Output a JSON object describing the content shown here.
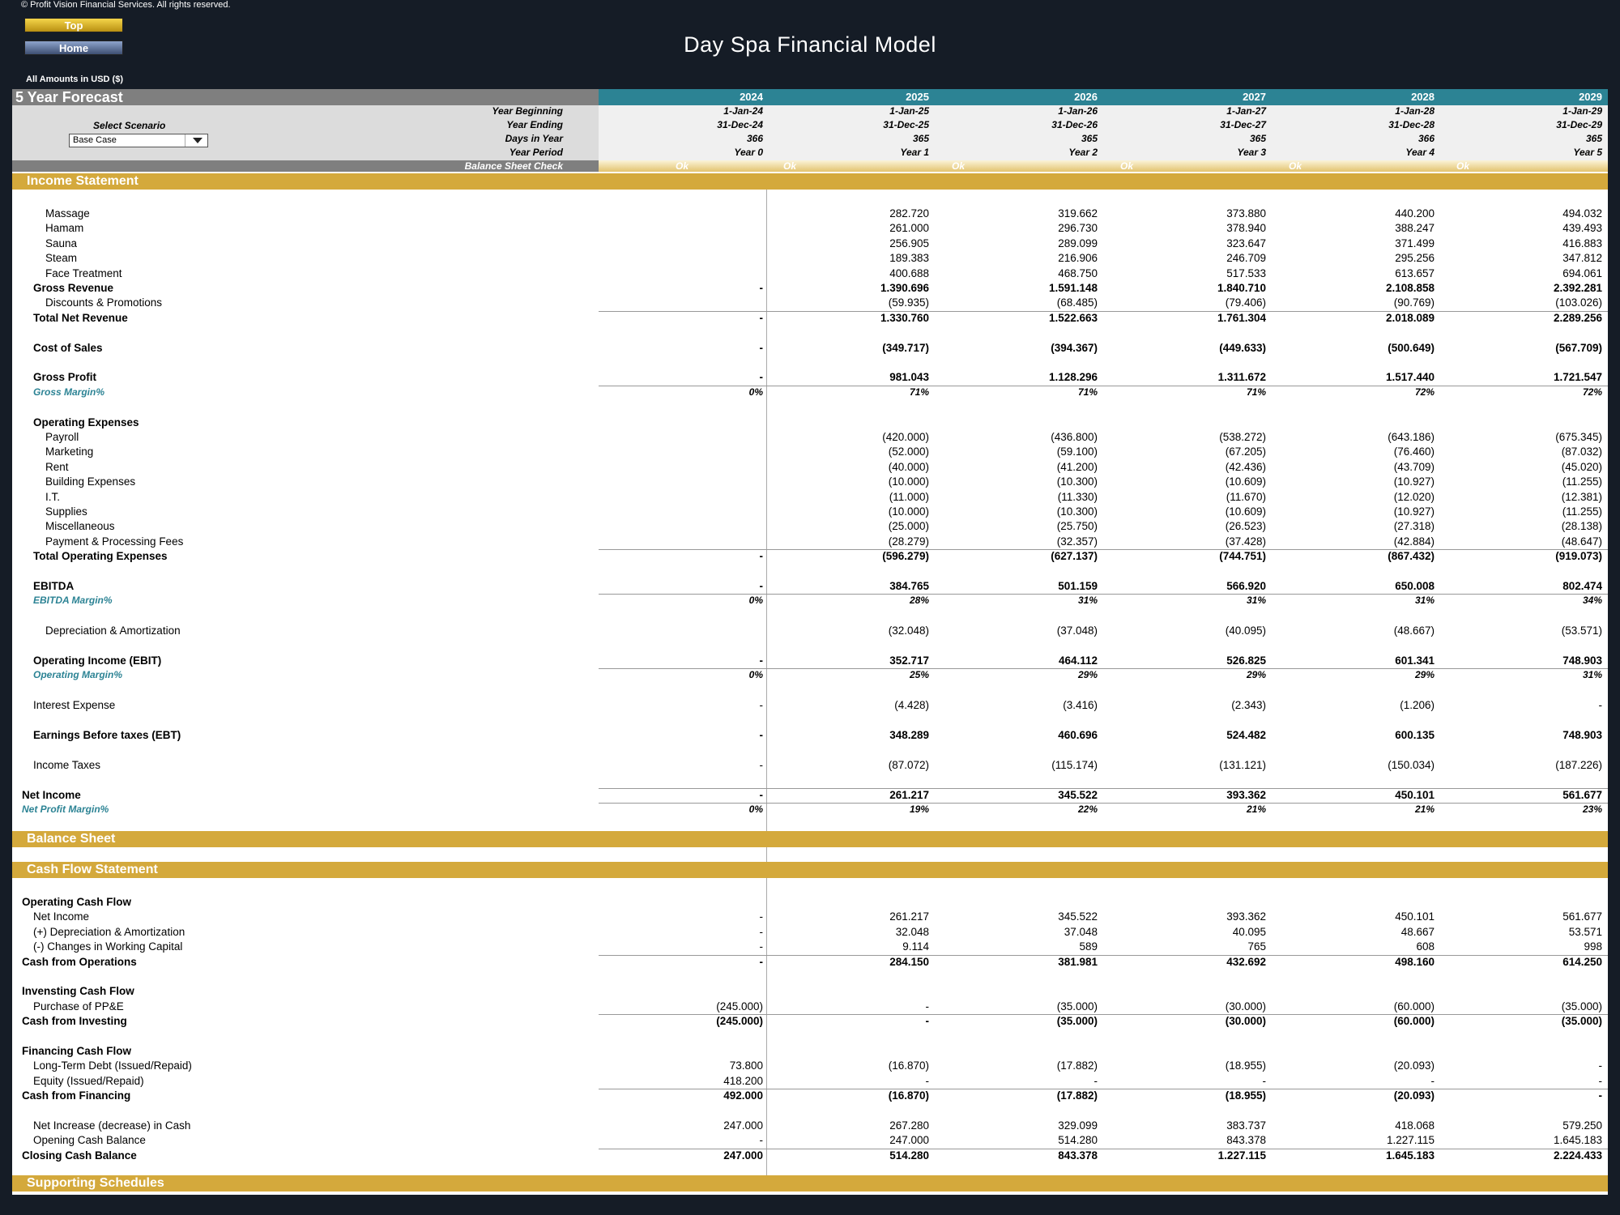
{
  "header": {
    "copyright": "© Profit Vision Financial Services. All rights reserved.",
    "top_button": "Top",
    "home_button": "Home",
    "title": "Day Spa Financial Model",
    "amounts": "All Amounts in  USD ($)"
  },
  "forecast": {
    "label": "5 Year Forecast",
    "years": [
      "2024",
      "2025",
      "2026",
      "2027",
      "2028",
      "2029"
    ],
    "year_beginning_label": "Year Beginning",
    "year_beginning": [
      "1-Jan-24",
      "1-Jan-25",
      "1-Jan-26",
      "1-Jan-27",
      "1-Jan-28",
      "1-Jan-29"
    ],
    "year_ending_label": "Year Ending",
    "year_ending": [
      "31-Dec-24",
      "31-Dec-25",
      "31-Dec-26",
      "31-Dec-27",
      "31-Dec-28",
      "31-Dec-29"
    ],
    "days_label": "Days in Year",
    "days": [
      "366",
      "365",
      "365",
      "365",
      "366",
      "365"
    ],
    "period_label": "Year Period",
    "period": [
      "Year 0",
      "Year 1",
      "Year 2",
      "Year 3",
      "Year 4",
      "Year 5"
    ],
    "scenario_label": "Select Scenario",
    "scenario_value": "Base Case",
    "bs_check_label": "Balance Sheet Check",
    "bs_check": [
      "Ok",
      "Ok",
      "Ok",
      "Ok",
      "Ok",
      "Ok"
    ]
  },
  "sections": {
    "income": "Income Statement",
    "balance": "Balance Sheet",
    "cashflow": "Cash Flow Statement",
    "supporting": "Supporting Schedules"
  },
  "income_rows": [
    {
      "label": "Massage",
      "indent": 2,
      "vals": [
        "",
        "282.720",
        "319.662",
        "373.880",
        "440.200",
        "494.032"
      ]
    },
    {
      "label": "Hamam",
      "indent": 2,
      "vals": [
        "",
        "261.000",
        "296.730",
        "378.940",
        "388.247",
        "439.493"
      ]
    },
    {
      "label": "Sauna",
      "indent": 2,
      "vals": [
        "",
        "256.905",
        "289.099",
        "323.647",
        "371.499",
        "416.883"
      ]
    },
    {
      "label": "Steam",
      "indent": 2,
      "vals": [
        "",
        "189.383",
        "216.906",
        "246.709",
        "295.256",
        "347.812"
      ]
    },
    {
      "label": "Face Treatment",
      "indent": 2,
      "vals": [
        "",
        "400.688",
        "468.750",
        "517.533",
        "613.657",
        "694.061"
      ]
    },
    {
      "label": "Gross Revenue",
      "indent": 1,
      "bold": true,
      "vals": [
        "-",
        "1.390.696",
        "1.591.148",
        "1.840.710",
        "2.108.858",
        "2.392.281"
      ]
    },
    {
      "label": "Discounts & Promotions",
      "indent": 2,
      "vals": [
        "",
        "(59.935)",
        "(68.485)",
        "(79.406)",
        "(90.769)",
        "(103.026)"
      ]
    },
    {
      "label": "Total Net Revenue",
      "indent": 1,
      "bold": true,
      "line": true,
      "vals": [
        "-",
        "1.330.760",
        "1.522.663",
        "1.761.304",
        "2.018.089",
        "2.289.256"
      ]
    },
    {
      "label": "Cost of Sales",
      "indent": 1,
      "bold": true,
      "gap": true,
      "vals": [
        "-",
        "(349.717)",
        "(394.367)",
        "(449.633)",
        "(500.649)",
        "(567.709)"
      ]
    },
    {
      "label": "Gross Profit",
      "indent": 1,
      "bold": true,
      "gap": true,
      "vals": [
        "-",
        "981.043",
        "1.128.296",
        "1.311.672",
        "1.517.440",
        "1.721.547"
      ]
    },
    {
      "label": "Gross Margin%",
      "indent": 1,
      "pct": true,
      "line": true,
      "vals": [
        "0%",
        "71%",
        "71%",
        "71%",
        "72%",
        "72%"
      ]
    },
    {
      "label": "Operating Expenses",
      "indent": 1,
      "bold": true,
      "gap": true,
      "vals": [
        "",
        "",
        "",
        "",
        "",
        ""
      ]
    },
    {
      "label": "Payroll",
      "indent": 2,
      "vals": [
        "",
        "(420.000)",
        "(436.800)",
        "(538.272)",
        "(643.186)",
        "(675.345)"
      ]
    },
    {
      "label": "Marketing",
      "indent": 2,
      "vals": [
        "",
        "(52.000)",
        "(59.100)",
        "(67.205)",
        "(76.460)",
        "(87.032)"
      ]
    },
    {
      "label": "Rent",
      "indent": 2,
      "vals": [
        "",
        "(40.000)",
        "(41.200)",
        "(42.436)",
        "(43.709)",
        "(45.020)"
      ]
    },
    {
      "label": "Building Expenses",
      "indent": 2,
      "vals": [
        "",
        "(10.000)",
        "(10.300)",
        "(10.609)",
        "(10.927)",
        "(11.255)"
      ]
    },
    {
      "label": "I.T.",
      "indent": 2,
      "vals": [
        "",
        "(11.000)",
        "(11.330)",
        "(11.670)",
        "(12.020)",
        "(12.381)"
      ]
    },
    {
      "label": "Supplies",
      "indent": 2,
      "vals": [
        "",
        "(10.000)",
        "(10.300)",
        "(10.609)",
        "(10.927)",
        "(11.255)"
      ]
    },
    {
      "label": "Miscellaneous",
      "indent": 2,
      "vals": [
        "",
        "(25.000)",
        "(25.750)",
        "(26.523)",
        "(27.318)",
        "(28.138)"
      ]
    },
    {
      "label": "Payment & Processing Fees",
      "indent": 2,
      "vals": [
        "",
        "(28.279)",
        "(32.357)",
        "(37.428)",
        "(42.884)",
        "(48.647)"
      ]
    },
    {
      "label": "Total Operating Expenses",
      "indent": 1,
      "bold": true,
      "line": true,
      "vals": [
        "-",
        "(596.279)",
        "(627.137)",
        "(744.751)",
        "(867.432)",
        "(919.073)"
      ]
    },
    {
      "label": "EBITDA",
      "indent": 1,
      "bold": true,
      "gap": true,
      "vals": [
        "-",
        "384.765",
        "501.159",
        "566.920",
        "650.008",
        "802.474"
      ]
    },
    {
      "label": "EBITDA Margin%",
      "indent": 1,
      "pct": true,
      "line": true,
      "vals": [
        "0%",
        "28%",
        "31%",
        "31%",
        "31%",
        "34%"
      ]
    },
    {
      "label": "Depreciation & Amortization",
      "indent": 2,
      "gap": true,
      "vals": [
        "",
        "(32.048)",
        "(37.048)",
        "(40.095)",
        "(48.667)",
        "(53.571)"
      ]
    },
    {
      "label": "Operating Income (EBIT)",
      "indent": 1,
      "bold": true,
      "gap": true,
      "vals": [
        "-",
        "352.717",
        "464.112",
        "526.825",
        "601.341",
        "748.903"
      ]
    },
    {
      "label": "Operating Margin%",
      "indent": 1,
      "pct": true,
      "line": true,
      "vals": [
        "0%",
        "25%",
        "29%",
        "29%",
        "29%",
        "31%"
      ]
    },
    {
      "label": "Interest Expense",
      "indent": 1,
      "gap": true,
      "vals": [
        "-",
        "(4.428)",
        "(3.416)",
        "(2.343)",
        "(1.206)",
        "-"
      ]
    },
    {
      "label": "Earnings Before taxes (EBT)",
      "indent": 1,
      "bold": true,
      "gap": true,
      "vals": [
        "-",
        "348.289",
        "460.696",
        "524.482",
        "600.135",
        "748.903"
      ]
    },
    {
      "label": "Income Taxes",
      "indent": 1,
      "gap": true,
      "vals": [
        "-",
        "(87.072)",
        "(115.174)",
        "(131.121)",
        "(150.034)",
        "(187.226)"
      ]
    },
    {
      "label": "Net Income",
      "indent": 0,
      "bold": true,
      "gap": true,
      "line": true,
      "vals": [
        "-",
        "261.217",
        "345.522",
        "393.362",
        "450.101",
        "561.677"
      ]
    },
    {
      "label": "Net Profit Margin%",
      "indent": 0,
      "pct": true,
      "line": true,
      "vals": [
        "0%",
        "19%",
        "22%",
        "21%",
        "21%",
        "23%"
      ]
    }
  ],
  "cash_rows": [
    {
      "label": "Operating Cash Flow",
      "indent": 0,
      "bold": true,
      "vals": [
        "",
        "",
        "",
        "",
        "",
        ""
      ]
    },
    {
      "label": "Net Income",
      "indent": 1,
      "vals": [
        "-",
        "261.217",
        "345.522",
        "393.362",
        "450.101",
        "561.677"
      ]
    },
    {
      "label": "(+) Depreciation & Amortization",
      "indent": 1,
      "vals": [
        "-",
        "32.048",
        "37.048",
        "40.095",
        "48.667",
        "53.571"
      ]
    },
    {
      "label": "(-) Changes in Working Capital",
      "indent": 1,
      "vals": [
        "-",
        "9.114",
        "589",
        "765",
        "608",
        "998"
      ]
    },
    {
      "label": "Cash from Operations",
      "indent": 0,
      "bold": true,
      "line": true,
      "vals": [
        "-",
        "284.150",
        "381.981",
        "432.692",
        "498.160",
        "614.250"
      ]
    },
    {
      "label": "Invensting Cash Flow",
      "indent": 0,
      "bold": true,
      "gap": true,
      "vals": [
        "",
        "",
        "",
        "",
        "",
        ""
      ]
    },
    {
      "label": "Purchase of PP&E",
      "indent": 1,
      "vals": [
        "(245.000)",
        "-",
        "(35.000)",
        "(30.000)",
        "(60.000)",
        "(35.000)"
      ]
    },
    {
      "label": "Cash from Investing",
      "indent": 0,
      "bold": true,
      "line": true,
      "vals": [
        "(245.000)",
        "-",
        "(35.000)",
        "(30.000)",
        "(60.000)",
        "(35.000)"
      ]
    },
    {
      "label": "Financing Cash Flow",
      "indent": 0,
      "bold": true,
      "gap": true,
      "vals": [
        "",
        "",
        "",
        "",
        "",
        ""
      ]
    },
    {
      "label": "Long-Term Debt (Issued/Repaid)",
      "indent": 1,
      "vals": [
        "73.800",
        "(16.870)",
        "(17.882)",
        "(18.955)",
        "(20.093)",
        "-"
      ]
    },
    {
      "label": "Equity (Issued/Repaid)",
      "indent": 1,
      "vals": [
        "418.200",
        "-",
        "-",
        "-",
        "-",
        "-"
      ]
    },
    {
      "label": "Cash from Financing",
      "indent": 0,
      "bold": true,
      "line": true,
      "vals": [
        "492.000",
        "(16.870)",
        "(17.882)",
        "(18.955)",
        "(20.093)",
        "-"
      ]
    },
    {
      "label": "Net Increase (decrease) in Cash",
      "indent": 1,
      "gap": true,
      "vals": [
        "247.000",
        "267.280",
        "329.099",
        "383.737",
        "418.068",
        "579.250"
      ]
    },
    {
      "label": "Opening Cash Balance",
      "indent": 1,
      "vals": [
        "-",
        "247.000",
        "514.280",
        "843.378",
        "1.227.115",
        "1.645.183"
      ]
    },
    {
      "label": "Closing Cash Balance",
      "indent": 0,
      "bold": true,
      "line": true,
      "vals": [
        "247.000",
        "514.280",
        "843.378",
        "1.227.115",
        "1.645.183",
        "2.224.433"
      ]
    }
  ]
}
